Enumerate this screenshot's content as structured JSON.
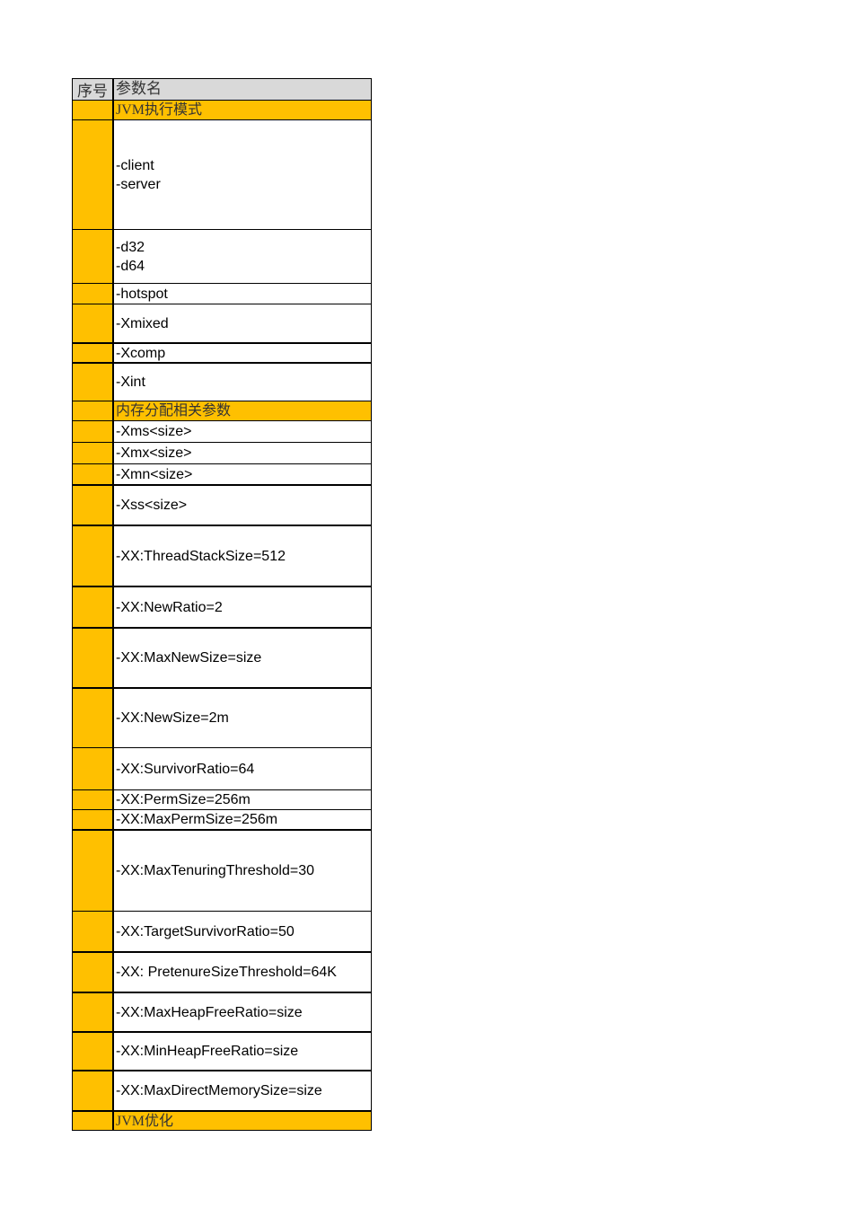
{
  "header": {
    "col1": "序号",
    "col2": "参数名"
  },
  "rows": [
    {
      "type": "section",
      "label": "JVM执行模式"
    },
    {
      "type": "param",
      "label": "-client\n-server"
    },
    {
      "type": "param",
      "label": "-d32\n-d64"
    },
    {
      "type": "param",
      "label": "-hotspot"
    },
    {
      "type": "param",
      "label": "-Xmixed"
    },
    {
      "type": "param",
      "label": "-Xcomp"
    },
    {
      "type": "param",
      "label": "-Xint"
    },
    {
      "type": "section",
      "label": "内存分配相关参数"
    },
    {
      "type": "param",
      "label": "-Xms<size>"
    },
    {
      "type": "param",
      "label": "-Xmx<size>"
    },
    {
      "type": "param",
      "label": "-Xmn<size>"
    },
    {
      "type": "param",
      "label": "-Xss<size>"
    },
    {
      "type": "param",
      "label": "-XX:ThreadStackSize=512"
    },
    {
      "type": "param",
      "label": "-XX:NewRatio=2"
    },
    {
      "type": "param",
      "label": "-XX:MaxNewSize=size"
    },
    {
      "type": "param",
      "label": "-XX:NewSize=2m"
    },
    {
      "type": "param",
      "label": "-XX:SurvivorRatio=64"
    },
    {
      "type": "param",
      "label": "-XX:PermSize=256m"
    },
    {
      "type": "param",
      "label": "-XX:MaxPermSize=256m"
    },
    {
      "type": "param",
      "label": "-XX:MaxTenuringThreshold=30"
    },
    {
      "type": "param",
      "label": "-XX:TargetSurvivorRatio=50"
    },
    {
      "type": "param",
      "label": "-XX: PretenureSizeThreshold=64K"
    },
    {
      "type": "param",
      "label": "-XX:MaxHeapFreeRatio=size"
    },
    {
      "type": "param",
      "label": "-XX:MinHeapFreeRatio=size"
    },
    {
      "type": "param",
      "label": "-XX:MaxDirectMemorySize=size"
    },
    {
      "type": "section",
      "label": "JVM优化"
    }
  ],
  "colors": {
    "section": "#ffc000",
    "header": "#d9d9d9"
  }
}
